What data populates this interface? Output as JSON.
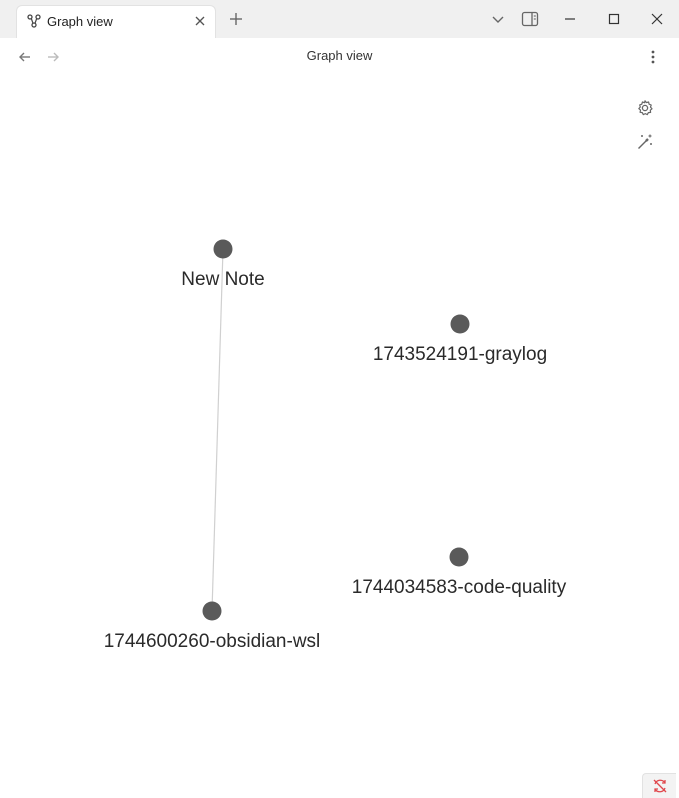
{
  "tab": {
    "title": "Graph view",
    "icon": "graph-icon"
  },
  "window_controls": {
    "new_tab_icon": "plus-icon",
    "tab_list_icon": "chevron-down-icon",
    "sidebar_icon": "sidebar-toggle-icon",
    "minimize_icon": "minimize-icon",
    "maximize_icon": "maximize-icon",
    "close_icon": "close-icon"
  },
  "header": {
    "title": "Graph view",
    "back_icon": "arrow-left-icon",
    "forward_icon": "arrow-right-icon",
    "more_icon": "more-vertical-icon"
  },
  "graph_controls": {
    "settings_icon": "gear-icon",
    "animate_icon": "magic-wand-icon"
  },
  "graph": {
    "node_color": "#5a5a5a",
    "edge_color": "#d0d0d0",
    "nodes": [
      {
        "id": "new-note",
        "label": "New Note"
      },
      {
        "id": "graylog",
        "label": "1743524191-graylog"
      },
      {
        "id": "code-quality",
        "label": "1744034583-code-quality"
      },
      {
        "id": "obsidian-wsl",
        "label": "1744600260-obsidian-wsl"
      }
    ],
    "edges": [
      {
        "from": "new-note",
        "to": "obsidian-wsl"
      }
    ]
  },
  "status": {
    "sync_icon": "sync-error-icon",
    "sync_color": "#e0474c"
  }
}
